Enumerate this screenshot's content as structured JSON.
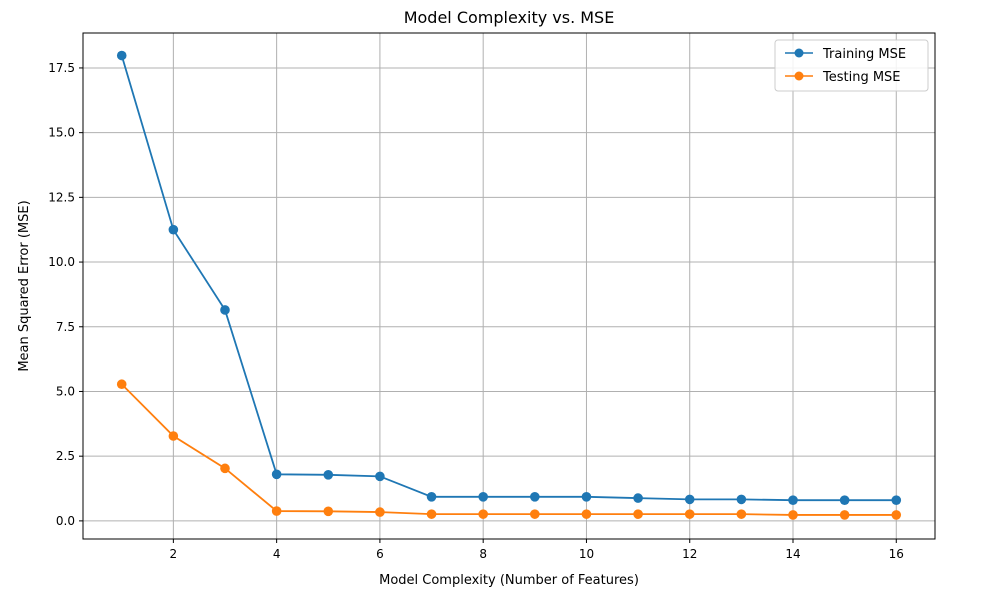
{
  "chart_data": {
    "type": "line",
    "title": "Model Complexity vs. MSE",
    "xlabel": "Model Complexity (Number of Features)",
    "ylabel": "Mean Squared Error (MSE)",
    "x": [
      1,
      2,
      3,
      4,
      5,
      6,
      7,
      8,
      9,
      10,
      11,
      12,
      13,
      14,
      15,
      16
    ],
    "xlim": [
      0.25,
      16.75
    ],
    "ylim": [
      -0.7,
      18.85
    ],
    "xticks": [
      2,
      4,
      6,
      8,
      10,
      12,
      14,
      16
    ],
    "yticks": [
      0.0,
      2.5,
      5.0,
      7.5,
      10.0,
      12.5,
      15.0,
      17.5
    ],
    "xtick_labels": [
      "2",
      "4",
      "6",
      "8",
      "10",
      "12",
      "14",
      "16"
    ],
    "ytick_labels": [
      "0.0",
      "2.5",
      "5.0",
      "7.5",
      "10.0",
      "12.5",
      "15.0",
      "17.5"
    ],
    "grid": true,
    "legend_position": "top-right",
    "series": [
      {
        "name": "Training MSE",
        "color": "#1f77b4",
        "values": [
          17.98,
          11.25,
          8.15,
          1.8,
          1.78,
          1.72,
          0.93,
          0.93,
          0.93,
          0.93,
          0.88,
          0.83,
          0.83,
          0.8,
          0.8,
          0.8
        ]
      },
      {
        "name": "Testing MSE",
        "color": "#ff7f0e",
        "values": [
          5.28,
          3.28,
          2.03,
          0.38,
          0.37,
          0.34,
          0.26,
          0.26,
          0.26,
          0.26,
          0.26,
          0.26,
          0.26,
          0.23,
          0.23,
          0.23
        ]
      }
    ]
  }
}
